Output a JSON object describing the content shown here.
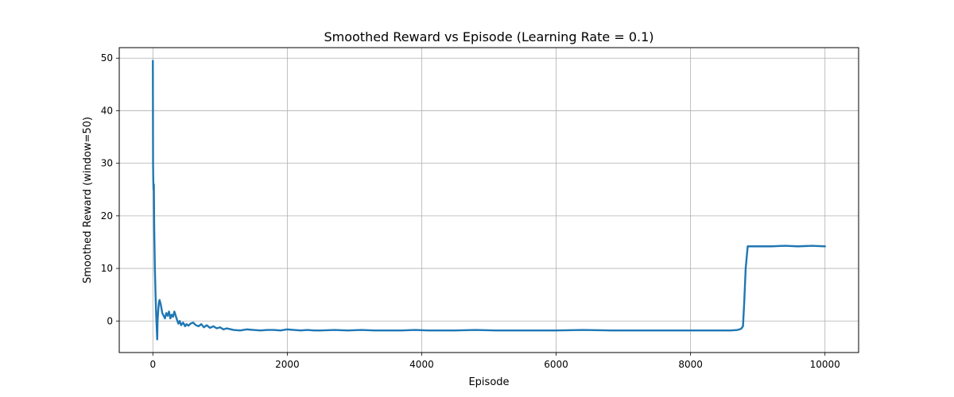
{
  "chart_data": {
    "type": "line",
    "title": "Smoothed Reward vs Episode (Learning Rate = 0.1)",
    "xlabel": "Episode",
    "ylabel": "Smoothed Reward (window=50)",
    "xlim": [
      -500,
      10500
    ],
    "ylim": [
      -6,
      52
    ],
    "xticks": [
      0,
      2000,
      4000,
      6000,
      8000,
      10000
    ],
    "yticks": [
      0,
      10,
      20,
      30,
      40,
      50
    ],
    "grid": true,
    "legend": "none",
    "series": [
      {
        "color": "#1f77b4",
        "x": [
          0,
          3,
          6,
          10,
          15,
          20,
          30,
          40,
          50,
          60,
          65,
          70,
          80,
          90,
          100,
          120,
          140,
          160,
          180,
          200,
          220,
          240,
          260,
          280,
          300,
          320,
          340,
          360,
          380,
          400,
          420,
          450,
          480,
          500,
          530,
          560,
          600,
          640,
          680,
          720,
          760,
          800,
          850,
          900,
          950,
          1000,
          1050,
          1100,
          1200,
          1300,
          1400,
          1500,
          1600,
          1700,
          1800,
          1900,
          2000,
          2100,
          2200,
          2300,
          2400,
          2500,
          2700,
          2900,
          3100,
          3300,
          3500,
          3700,
          3900,
          4100,
          4300,
          4500,
          4800,
          5100,
          5400,
          5700,
          6000,
          6400,
          6800,
          7200,
          7600,
          8000,
          8400,
          8600,
          8700,
          8750,
          8780,
          8800,
          8820,
          8850,
          8900,
          9000,
          9200,
          9400,
          9600,
          9800,
          10000
        ],
        "values": [
          49.5,
          30,
          27,
          25,
          26,
          18,
          10,
          5,
          1,
          -2,
          -3.5,
          0,
          2,
          3.5,
          4,
          3,
          1.5,
          1,
          0.5,
          1.5,
          1,
          1.8,
          0.5,
          1.2,
          0.8,
          1.8,
          1,
          0.2,
          -0.5,
          0,
          -0.8,
          -0.3,
          -1,
          -0.6,
          -0.9,
          -0.5,
          -0.3,
          -0.8,
          -1,
          -0.6,
          -1.2,
          -0.8,
          -1.3,
          -1,
          -1.4,
          -1.2,
          -1.6,
          -1.4,
          -1.7,
          -1.8,
          -1.6,
          -1.7,
          -1.8,
          -1.7,
          -1.7,
          -1.8,
          -1.6,
          -1.7,
          -1.8,
          -1.7,
          -1.8,
          -1.8,
          -1.7,
          -1.8,
          -1.7,
          -1.8,
          -1.8,
          -1.8,
          -1.7,
          -1.8,
          -1.8,
          -1.8,
          -1.7,
          -1.8,
          -1.8,
          -1.8,
          -1.8,
          -1.7,
          -1.8,
          -1.8,
          -1.8,
          -1.8,
          -1.8,
          -1.8,
          -1.7,
          -1.5,
          -1,
          4,
          10,
          14.2,
          14.2,
          14.2,
          14.2,
          14.3,
          14.2,
          14.3,
          14.2
        ]
      }
    ]
  }
}
